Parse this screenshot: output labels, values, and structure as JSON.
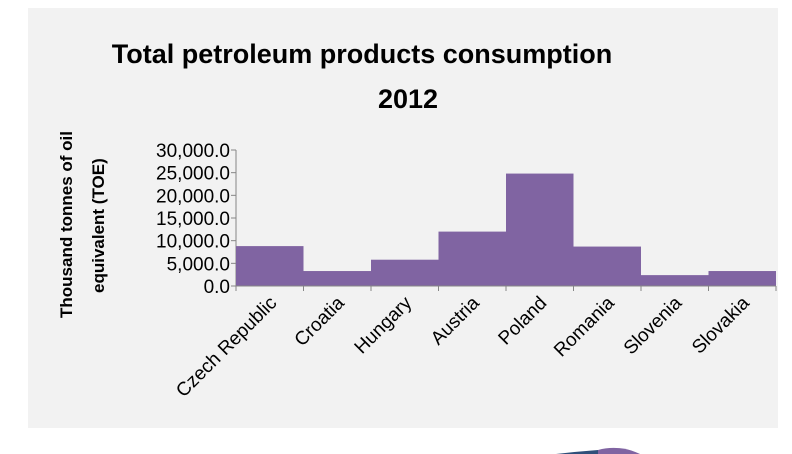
{
  "chart_data": {
    "type": "bar",
    "title": "Total petroleum products consumption 2012",
    "title_lines": [
      "Total petroleum products consumption",
      "2012"
    ],
    "ylabel": "Thousand tonnes of oil equivalent (TOE)",
    "ylabel_lines": [
      "Thousand tonnes of oil",
      "equivalent (TOE)"
    ],
    "xlabel": "",
    "categories": [
      "Czech Republic",
      "Croatia",
      "Hungary",
      "Austria",
      "Poland",
      "Romania",
      "Slovenia",
      "Slovakia"
    ],
    "values": [
      8800,
      3300,
      5800,
      12000,
      24800,
      8700,
      2400,
      3300
    ],
    "ylim": [
      0,
      30000
    ],
    "yticks": [
      0,
      5000,
      10000,
      15000,
      20000,
      25000,
      30000
    ],
    "ytick_labels": [
      "0.0",
      "5,000.0",
      "10,000.0",
      "15,000.0",
      "20,000.0",
      "25,000.0",
      "30,000.0"
    ],
    "bar_color": "#8064a2",
    "grid": false,
    "legend": "none"
  },
  "colors": {
    "plot_background": "#f2f2f2",
    "pie_fragment_a": "#2f4f7a",
    "pie_fragment_b": "#8064a2"
  }
}
